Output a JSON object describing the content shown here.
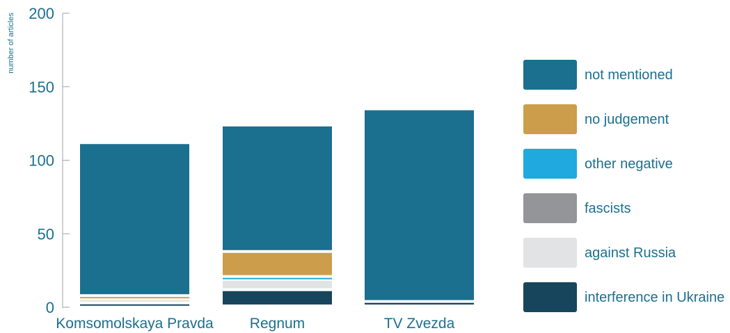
{
  "chart_data": {
    "type": "bar",
    "stacked": true,
    "ylabel": "number of articles",
    "ylim": [
      0,
      200
    ],
    "yticks": [
      0,
      50,
      100,
      150,
      200
    ],
    "categories": [
      "Komsomolskaya Pravda",
      "Regnum",
      "TV Zvezda"
    ],
    "series": [
      {
        "name": "interference in Ukraine",
        "color": "#17465c",
        "values": [
          2,
          11,
          3
        ]
      },
      {
        "name": "against Russia",
        "color": "#e1e3e4",
        "values": [
          3,
          7,
          0
        ]
      },
      {
        "name": "fascists",
        "color": "#939598",
        "values": [
          0,
          0,
          0
        ]
      },
      {
        "name": "other negative",
        "color": "#1fa9df",
        "values": [
          0,
          2,
          0
        ]
      },
      {
        "name": "no judgement",
        "color": "#cc9e4b",
        "values": [
          2,
          17,
          0
        ]
      },
      {
        "name": "not mentioned",
        "color": "#1b6f8f",
        "values": [
          104,
          86,
          131
        ]
      }
    ],
    "legend_position": "right",
    "grid": false,
    "axis_color": "#9ea3a7",
    "text_color": "#1b6f8f"
  }
}
